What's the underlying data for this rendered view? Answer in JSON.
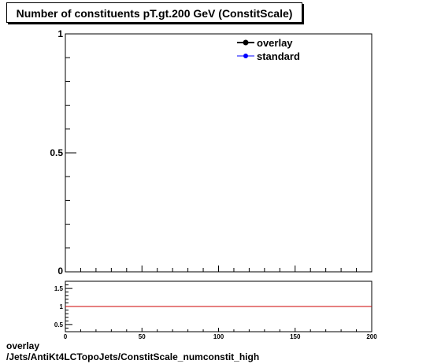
{
  "title": "Number of constituents pT.gt.200 GeV (ConstitScale)",
  "footer": {
    "line1": "overlay",
    "line2": "/Jets/AntiKt4LCTopoJets/ConstitScale_numconstit_high"
  },
  "legend": [
    {
      "label": "overlay",
      "color": "#000000"
    },
    {
      "label": "standard",
      "color": "#0000ff"
    }
  ],
  "chart_data": [
    {
      "type": "line",
      "title": "Number of constituents pT.gt.200 GeV (ConstitScale)",
      "xlim": [
        0,
        200
      ],
      "ylim": [
        0,
        1
      ],
      "yticks": [
        {
          "value": 0,
          "label": "0"
        },
        {
          "value": 0.5,
          "label": "0.5"
        },
        {
          "value": 1,
          "label": "1"
        }
      ],
      "series": [
        {
          "name": "overlay",
          "color": "#000000",
          "x": [],
          "y": []
        },
        {
          "name": "standard",
          "color": "#0000ff",
          "x": [],
          "y": []
        }
      ]
    },
    {
      "type": "line",
      "xlim": [
        0,
        200
      ],
      "ylim": [
        0.3,
        1.7
      ],
      "xticks": [
        {
          "value": 0,
          "label": "0"
        },
        {
          "value": 50,
          "label": "50"
        },
        {
          "value": 100,
          "label": "100"
        },
        {
          "value": 150,
          "label": "150"
        },
        {
          "value": 200,
          "label": "200"
        }
      ],
      "yticks": [
        {
          "value": 0.5,
          "label": "0.5"
        },
        {
          "value": 1,
          "label": "1"
        },
        {
          "value": 1.5,
          "label": "1.5"
        }
      ],
      "reference_line": {
        "y": 1,
        "color": "#cc0000"
      }
    }
  ]
}
